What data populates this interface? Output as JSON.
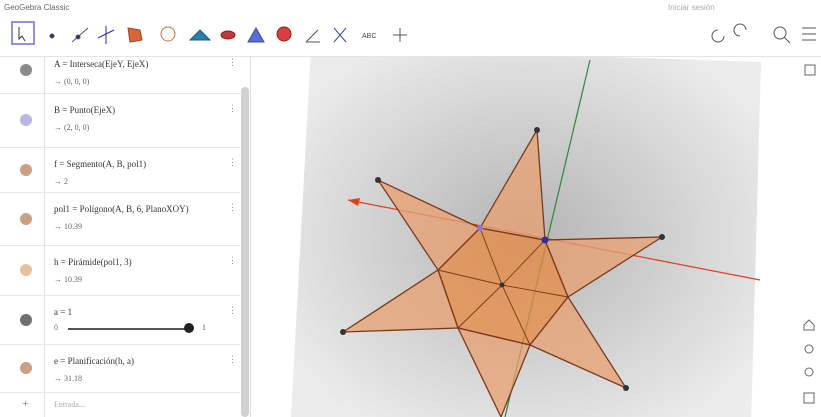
{
  "window": {
    "title": "GeoGebra Classic",
    "sign_in": "Iniciar sesión"
  },
  "toolbar": {
    "text_tool": "ABC"
  },
  "algebra": {
    "entries": [
      {
        "definition": "A = Interseca(EjeY, EjeX)",
        "value": "→ (0, 0, 0)",
        "color": "#8a8a8a"
      },
      {
        "definition": "B = Punto(EjeX)",
        "value": "→ (2, 0, 0)",
        "color": "#b9b6e3"
      },
      {
        "definition": "f = Segmento(A, B, pol1)",
        "value": "→ 2",
        "color": "#c8a084"
      },
      {
        "definition": "pol1 = Polígono(A, B, 6, PlanoXOY)",
        "value": "→ 10.39",
        "color": "#c8a084"
      },
      {
        "definition": "h = Pirámide(pol1, 3)",
        "value": "→ 10.39",
        "color": "#e8c0a0"
      },
      {
        "definition": "a = 1",
        "slider_min": "0",
        "slider_max": "1",
        "color": "#707070"
      },
      {
        "definition": "e = Planificación(h, a)",
        "value": "→ 31.18",
        "color": "#c8a084"
      }
    ],
    "input_placeholder": "Entrada..."
  }
}
